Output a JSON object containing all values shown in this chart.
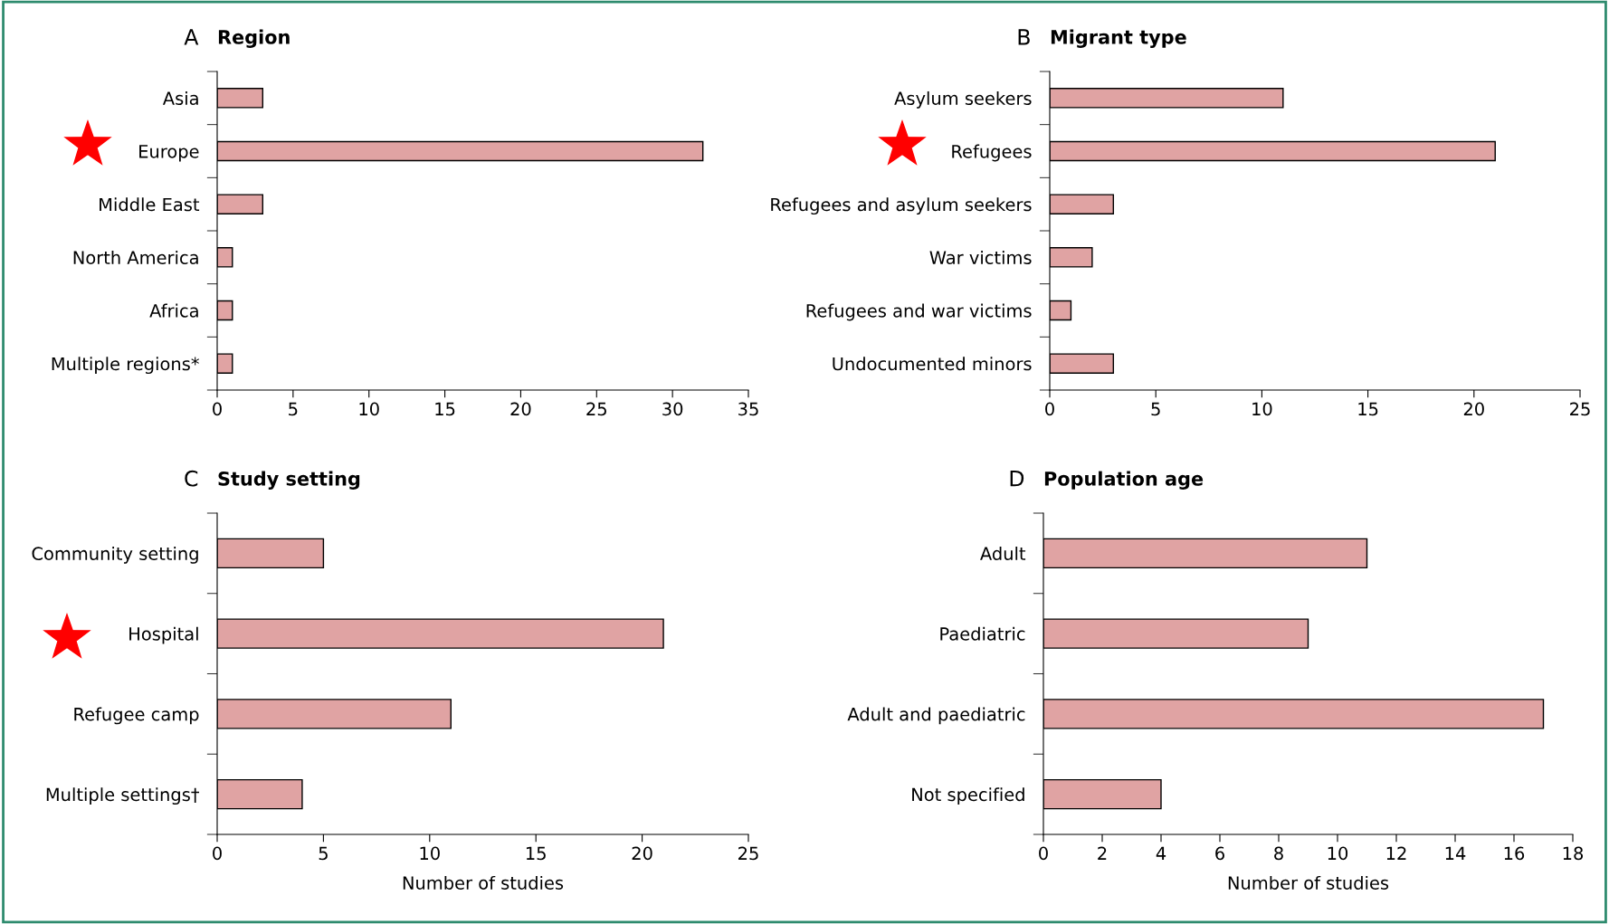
{
  "chart_data": [
    {
      "type": "bar",
      "orientation": "horizontal",
      "title": "Region",
      "annotations": [
        "A"
      ],
      "categories": [
        "Asia",
        "Europe",
        "Middle East",
        "North America",
        "Africa",
        "Multiple regions*"
      ],
      "series": [
        {
          "color": "#e0a3a3",
          "values": [
            3,
            32,
            3,
            1,
            1,
            1
          ]
        }
      ],
      "xlim": [
        0,
        35
      ],
      "xticks": [
        0,
        5,
        10,
        15,
        20,
        25,
        30,
        35
      ],
      "grid": false,
      "legend": false
    },
    {
      "type": "bar",
      "orientation": "horizontal",
      "title": "Migrant type",
      "annotations": [
        "B"
      ],
      "categories": [
        "Asylum seekers",
        "Refugees",
        "Refugees and asylum seekers",
        "War victims",
        "Refugees and war victims",
        "Undocumented minors"
      ],
      "series": [
        {
          "color": "#e0a3a3",
          "values": [
            11,
            21,
            3,
            2,
            1,
            3
          ]
        }
      ],
      "xlim": [
        0,
        25
      ],
      "xticks": [
        0,
        5,
        10,
        15,
        20,
        25
      ],
      "grid": false,
      "legend": false
    },
    {
      "type": "bar",
      "orientation": "horizontal",
      "title": "Study setting",
      "annotations": [
        "C"
      ],
      "xlabel": "Number of studies",
      "categories": [
        "Community setting",
        "Hospital",
        "Refugee camp",
        "Multiple settings†"
      ],
      "series": [
        {
          "color": "#e0a3a3",
          "values": [
            5,
            21,
            11,
            4
          ]
        }
      ],
      "xlim": [
        0,
        25
      ],
      "xticks": [
        0,
        5,
        10,
        15,
        20,
        25
      ],
      "grid": false,
      "legend": false
    },
    {
      "type": "bar",
      "orientation": "horizontal",
      "title": "Population age",
      "annotations": [
        "D"
      ],
      "xlabel": "Number of studies",
      "categories": [
        "Adult",
        "Paediatric",
        "Adult and paediatric",
        "Not specified"
      ],
      "series": [
        {
          "color": "#e0a3a3",
          "values": [
            11,
            9,
            17,
            4
          ]
        }
      ],
      "xlim": [
        0,
        18
      ],
      "xticks": [
        0,
        2,
        4,
        6,
        8,
        10,
        12,
        14,
        16,
        18
      ],
      "grid": false,
      "legend": false
    }
  ]
}
